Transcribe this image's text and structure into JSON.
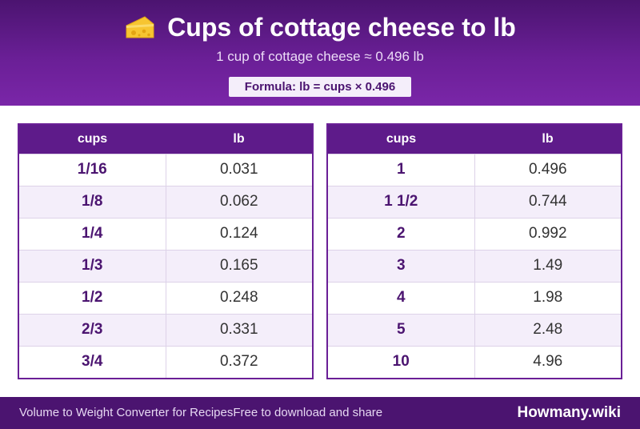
{
  "header": {
    "title": "Cups of cottage cheese to lb",
    "icon": "cheese-icon",
    "subtitle": "1 cup of cottage cheese ≈ 0.496 lb",
    "formula": "Formula: lb = cups × 0.496"
  },
  "colors": {
    "header_top": "#4b1470",
    "header_bottom": "#7a26a8",
    "table_header": "#5e1b8a",
    "row_alt": "#f4eefa",
    "accent_text": "#4b1470"
  },
  "table_left": {
    "col1": "cups",
    "col2": "lb",
    "rows": [
      [
        "1/16",
        "0.031"
      ],
      [
        "1/8",
        "0.062"
      ],
      [
        "1/4",
        "0.124"
      ],
      [
        "1/3",
        "0.165"
      ],
      [
        "1/2",
        "0.248"
      ],
      [
        "2/3",
        "0.331"
      ],
      [
        "3/4",
        "0.372"
      ]
    ]
  },
  "table_right": {
    "col1": "cups",
    "col2": "lb",
    "rows": [
      [
        "1",
        "0.496"
      ],
      [
        "1 1/2",
        "0.744"
      ],
      [
        "2",
        "0.992"
      ],
      [
        "3",
        "1.49"
      ],
      [
        "4",
        "1.98"
      ],
      [
        "5",
        "2.48"
      ],
      [
        "10",
        "4.96"
      ]
    ]
  },
  "footer": {
    "left_text_1": "Volume to Weight Converter for Recipes",
    "left_text_2": "Free to download and share",
    "brand": "Howmany.wiki"
  }
}
